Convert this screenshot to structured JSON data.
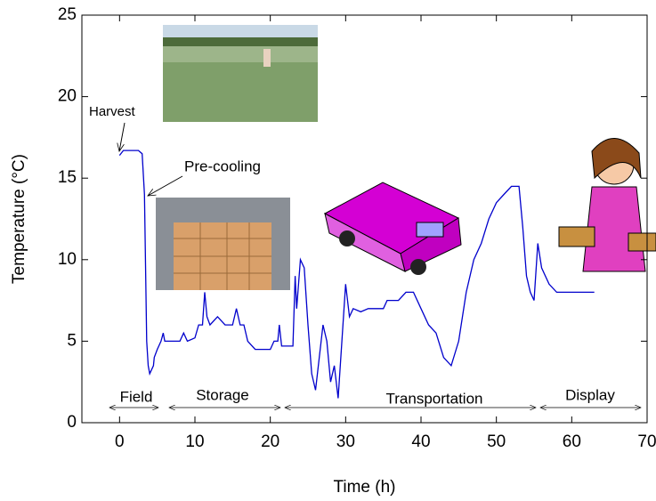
{
  "chart_data": {
    "type": "line",
    "xlabel": "Time (h)",
    "ylabel": "Temperature (°C)",
    "xlim": [
      -5,
      70
    ],
    "ylim": [
      0,
      25
    ],
    "xticks": [
      0,
      10,
      20,
      30,
      40,
      50,
      60,
      70
    ],
    "yticks": [
      0,
      5,
      10,
      15,
      20,
      25
    ],
    "grid": false,
    "annotations": [
      "Harvest",
      "Pre-cooling",
      "Field",
      "Storage",
      "Transportation",
      "Display"
    ],
    "x": [
      0,
      0.5,
      2.5,
      3,
      3.3,
      3.6,
      3.8,
      4.0,
      4.5,
      4.6,
      5,
      5.5,
      5.8,
      6,
      8,
      8.5,
      9,
      10,
      10.5,
      11,
      11.3,
      11.6,
      12,
      13,
      14,
      15,
      15.5,
      16,
      16.5,
      17,
      18,
      20,
      20.5,
      21,
      21.2,
      21.5,
      23,
      23.3,
      23.5,
      24,
      24.5,
      25,
      25.5,
      26,
      26.5,
      27,
      27.5,
      28,
      28.5,
      29,
      29.5,
      30,
      30.5,
      31,
      32,
      33,
      35,
      35.5,
      37,
      38,
      39,
      40,
      41,
      42,
      43,
      44,
      45,
      46,
      47,
      48,
      49,
      50,
      51,
      52,
      53,
      53.5,
      54,
      54.5,
      55,
      55.5,
      56,
      57,
      58,
      63
    ],
    "series": [
      {
        "name": "Temperature",
        "color": "#0000cc",
        "values": [
          16.4,
          16.7,
          16.7,
          16.5,
          14,
          5,
          3.5,
          3.0,
          3.5,
          4,
          4.5,
          5,
          5.5,
          5,
          5,
          5.5,
          5,
          5.2,
          6,
          6,
          8,
          6.5,
          6,
          6.5,
          6,
          6,
          7,
          6,
          6,
          5,
          4.5,
          4.5,
          5,
          5,
          6,
          4.7,
          4.7,
          9,
          7,
          10,
          9.5,
          6,
          3,
          2,
          4,
          6,
          5,
          2.5,
          3.5,
          1.5,
          5,
          8.5,
          6.5,
          7,
          6.8,
          7,
          7,
          7.5,
          7.5,
          8,
          8,
          7,
          6,
          5.5,
          4,
          3.5,
          5,
          8,
          10,
          11,
          12.5,
          13.5,
          14,
          14.5,
          14.5,
          12,
          9,
          8,
          7.5,
          11,
          9.5,
          8.5,
          8,
          8
        ]
      }
    ]
  }
}
